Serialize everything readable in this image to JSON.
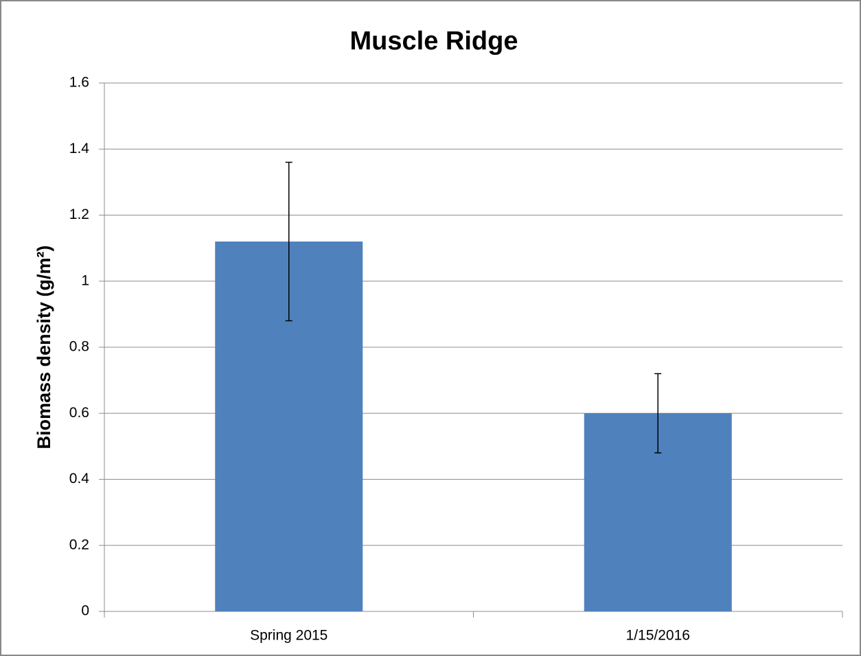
{
  "chart_data": {
    "type": "bar",
    "title": "Muscle Ridge",
    "y_label": "Biomass density (g/m²)",
    "categories": [
      "Spring 2015",
      "1/15/2016"
    ],
    "values": [
      1.12,
      0.6
    ],
    "errors": [
      0.24,
      0.12
    ],
    "color": "#4f81bd",
    "ylim": [
      0,
      1.6
    ],
    "yticks": [
      0,
      0.2,
      0.4,
      0.6,
      0.8,
      1,
      1.2,
      1.4,
      1.6
    ],
    "grid": true
  }
}
